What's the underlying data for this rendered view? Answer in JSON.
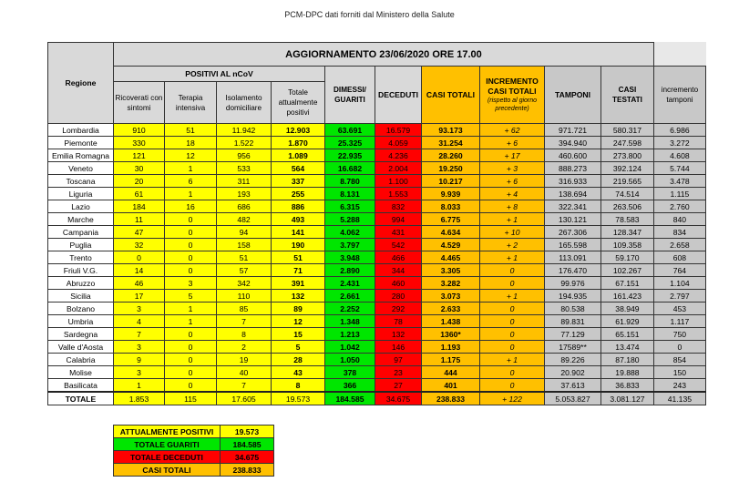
{
  "title": "PCM-DPC dati forniti dal Ministero della Salute",
  "headers": {
    "update": "AGGIORNAMENTO 23/06/2020 ORE 17.00",
    "regione": "Regione",
    "positivi": "POSITIVI AL nCoV",
    "ricoverati": "Ricoverati con sintomi",
    "terapia": "Terapia intensiva",
    "isolamento": "Isolamento domiciliare",
    "totale_positivi": "Totale attualmente positivi",
    "dimessi": "DIMESSI/ GUARITI",
    "deceduti": "DECEDUTI",
    "casi_totali": "CASI TOTALI",
    "incremento": "INCREMENTO CASI TOTALI",
    "incremento_note": "(rispetto al giorno precedente)",
    "tamponi": "TAMPONI",
    "casi_testati": "CASI TESTATI",
    "incremento_tamponi": "incremento tamponi"
  },
  "rows": [
    [
      "Lombardia",
      "910",
      "51",
      "11.942",
      "12.903",
      "63.691",
      "16.579",
      "93.173",
      "+ 62",
      "971.721",
      "580.317",
      "6.986"
    ],
    [
      "Piemonte",
      "330",
      "18",
      "1.522",
      "1.870",
      "25.325",
      "4.059",
      "31.254",
      "+ 6",
      "394.940",
      "247.598",
      "3.272"
    ],
    [
      "Emilia Romagna",
      "121",
      "12",
      "956",
      "1.089",
      "22.935",
      "4.236",
      "28.260",
      "+ 17",
      "460.600",
      "273.800",
      "4.608"
    ],
    [
      "Veneto",
      "30",
      "1",
      "533",
      "564",
      "16.682",
      "2.004",
      "19.250",
      "+ 3",
      "888.273",
      "392.124",
      "5.744"
    ],
    [
      "Toscana",
      "20",
      "6",
      "311",
      "337",
      "8.780",
      "1.100",
      "10.217",
      "+ 6",
      "316.933",
      "219.565",
      "3.478"
    ],
    [
      "Liguria",
      "61",
      "1",
      "193",
      "255",
      "8.131",
      "1.553",
      "9.939",
      "+ 4",
      "138.694",
      "74.514",
      "1.115"
    ],
    [
      "Lazio",
      "184",
      "16",
      "686",
      "886",
      "6.315",
      "832",
      "8.033",
      "+ 8",
      "322.341",
      "263.506",
      "2.760"
    ],
    [
      "Marche",
      "11",
      "0",
      "482",
      "493",
      "5.288",
      "994",
      "6.775",
      "+ 1",
      "130.121",
      "78.583",
      "840"
    ],
    [
      "Campania",
      "47",
      "0",
      "94",
      "141",
      "4.062",
      "431",
      "4.634",
      "+ 10",
      "267.306",
      "128.347",
      "834"
    ],
    [
      "Puglia",
      "32",
      "0",
      "158",
      "190",
      "3.797",
      "542",
      "4.529",
      "+ 2",
      "165.598",
      "109.358",
      "2.658"
    ],
    [
      "Trento",
      "0",
      "0",
      "51",
      "51",
      "3.948",
      "466",
      "4.465",
      "+ 1",
      "113.091",
      "59.170",
      "608"
    ],
    [
      "Friuli V.G.",
      "14",
      "0",
      "57",
      "71",
      "2.890",
      "344",
      "3.305",
      "0",
      "176.470",
      "102.267",
      "764"
    ],
    [
      "Abruzzo",
      "46",
      "3",
      "342",
      "391",
      "2.431",
      "460",
      "3.282",
      "0",
      "99.976",
      "67.151",
      "1.104"
    ],
    [
      "Sicilia",
      "17",
      "5",
      "110",
      "132",
      "2.661",
      "280",
      "3.073",
      "+ 1",
      "194.935",
      "161.423",
      "2.797"
    ],
    [
      "Bolzano",
      "3",
      "1",
      "85",
      "89",
      "2.252",
      "292",
      "2.633",
      "0",
      "80.538",
      "38.949",
      "453"
    ],
    [
      "Umbria",
      "4",
      "1",
      "7",
      "12",
      "1.348",
      "78",
      "1.438",
      "0",
      "89.831",
      "61.929",
      "1.117"
    ],
    [
      "Sardegna",
      "7",
      "0",
      "8",
      "15",
      "1.213",
      "132",
      "1360*",
      "0",
      "77.129",
      "65.151",
      "750"
    ],
    [
      "Valle d'Aosta",
      "3",
      "0",
      "2",
      "5",
      "1.042",
      "146",
      "1.193",
      "0",
      "17589**",
      "13.474",
      "0"
    ],
    [
      "Calabria",
      "9",
      "0",
      "19",
      "28",
      "1.050",
      "97",
      "1.175",
      "+ 1",
      "89.226",
      "87.180",
      "854"
    ],
    [
      "Molise",
      "3",
      "0",
      "40",
      "43",
      "378",
      "23",
      "444",
      "0",
      "20.902",
      "19.888",
      "150"
    ],
    [
      "Basilicata",
      "1",
      "0",
      "7",
      "8",
      "366",
      "27",
      "401",
      "0",
      "37.613",
      "36.833",
      "243"
    ]
  ],
  "total": [
    "TOTALE",
    "1.853",
    "115",
    "17.605",
    "19.573",
    "184.585",
    "34.675",
    "238.833",
    "+ 122",
    "5.053.827",
    "3.081.127",
    "41.135"
  ],
  "summary": [
    {
      "label": "ATTUALMENTE POSITIVI",
      "value": "19.573",
      "color": "#ffff00"
    },
    {
      "label": "TOTALE GUARITI",
      "value": "184.585",
      "color": "#00e600"
    },
    {
      "label": "TOTALE DECEDUTI",
      "value": "34.675",
      "color": "#ff0000"
    },
    {
      "label": "CASI TOTALI",
      "value": "238.833",
      "color": "#ffc000"
    }
  ]
}
